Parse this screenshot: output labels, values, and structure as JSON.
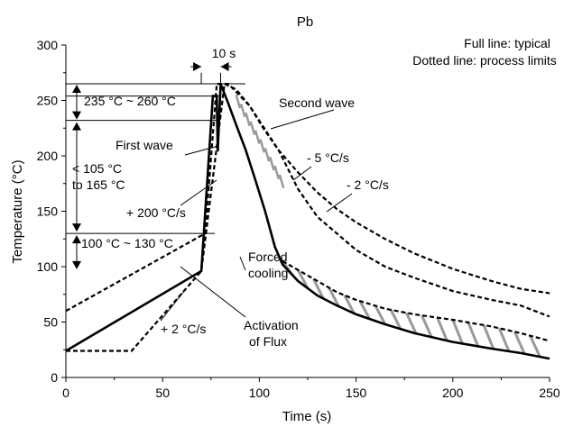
{
  "chart_data": {
    "type": "line",
    "title": "Pb",
    "xlabel": "Time (s)",
    "ylabel": "Temperature (°C)",
    "xlim": [
      0,
      250
    ],
    "ylim": [
      0,
      300
    ],
    "xticks": [
      0,
      50,
      100,
      150,
      200,
      250
    ],
    "yticks": [
      0,
      50,
      100,
      150,
      200,
      250,
      300
    ],
    "grid": false,
    "legend_note": [
      "Full line: typical",
      "Dotted line: process limits"
    ],
    "series": [
      {
        "style": "solid",
        "points": [
          [
            0,
            24
          ],
          [
            70,
            96
          ],
          [
            76,
            254
          ],
          [
            78,
            254
          ],
          [
            78.5,
            204
          ],
          [
            80,
            265
          ],
          [
            84,
            247
          ],
          [
            88,
            228
          ],
          [
            93,
            205
          ],
          [
            98,
            178
          ],
          [
            103,
            150
          ],
          [
            108,
            118
          ],
          [
            112,
            102
          ],
          [
            120,
            87
          ],
          [
            130,
            74
          ],
          [
            140,
            65
          ],
          [
            150,
            57
          ],
          [
            165,
            48
          ],
          [
            180,
            40
          ],
          [
            200,
            32
          ],
          [
            220,
            26
          ],
          [
            235,
            22
          ],
          [
            250,
            17
          ]
        ]
      },
      {
        "style": "dotted",
        "points": [
          [
            0,
            24
          ],
          [
            34,
            24
          ],
          [
            70,
            96
          ],
          [
            82,
            265
          ],
          [
            88,
            260
          ],
          [
            95,
            245
          ],
          [
            102,
            225
          ],
          [
            110,
            205
          ],
          [
            120,
            185
          ],
          [
            130,
            167
          ],
          [
            140,
            152
          ],
          [
            150,
            140
          ],
          [
            165,
            125
          ],
          [
            180,
            112
          ],
          [
            200,
            98
          ],
          [
            220,
            87
          ],
          [
            235,
            80
          ],
          [
            250,
            76
          ]
        ]
      },
      {
        "style": "dotted",
        "points": [
          [
            0,
            60
          ],
          [
            72,
            130
          ],
          [
            78,
            265
          ],
          [
            84,
            265
          ],
          [
            95,
            245
          ],
          [
            110,
            205
          ],
          [
            120,
            170
          ],
          [
            130,
            145
          ],
          [
            140,
            130
          ],
          [
            150,
            115
          ],
          [
            165,
            100
          ],
          [
            180,
            90
          ],
          [
            200,
            78
          ],
          [
            220,
            70
          ],
          [
            235,
            65
          ],
          [
            250,
            55
          ]
        ]
      },
      {
        "style": "dotted",
        "points": [
          [
            112,
            105
          ],
          [
            125,
            92
          ],
          [
            140,
            77
          ],
          [
            150,
            70
          ],
          [
            165,
            62
          ],
          [
            180,
            57
          ],
          [
            200,
            52
          ],
          [
            220,
            46
          ],
          [
            235,
            40
          ],
          [
            250,
            33
          ]
        ]
      }
    ],
    "annotations": [
      "10 s",
      "235 °C ~ 260 °C",
      "First wave",
      "< 105 °C",
      "to 165 °C",
      "+ 200 °C/s",
      "100 °C ~ 130 °C",
      "Second wave",
      "- 5 °C/s",
      "- 2 °C/s",
      "Forced",
      "cooling",
      "Activation",
      "of Flux",
      "+ 2 °C/s"
    ]
  }
}
